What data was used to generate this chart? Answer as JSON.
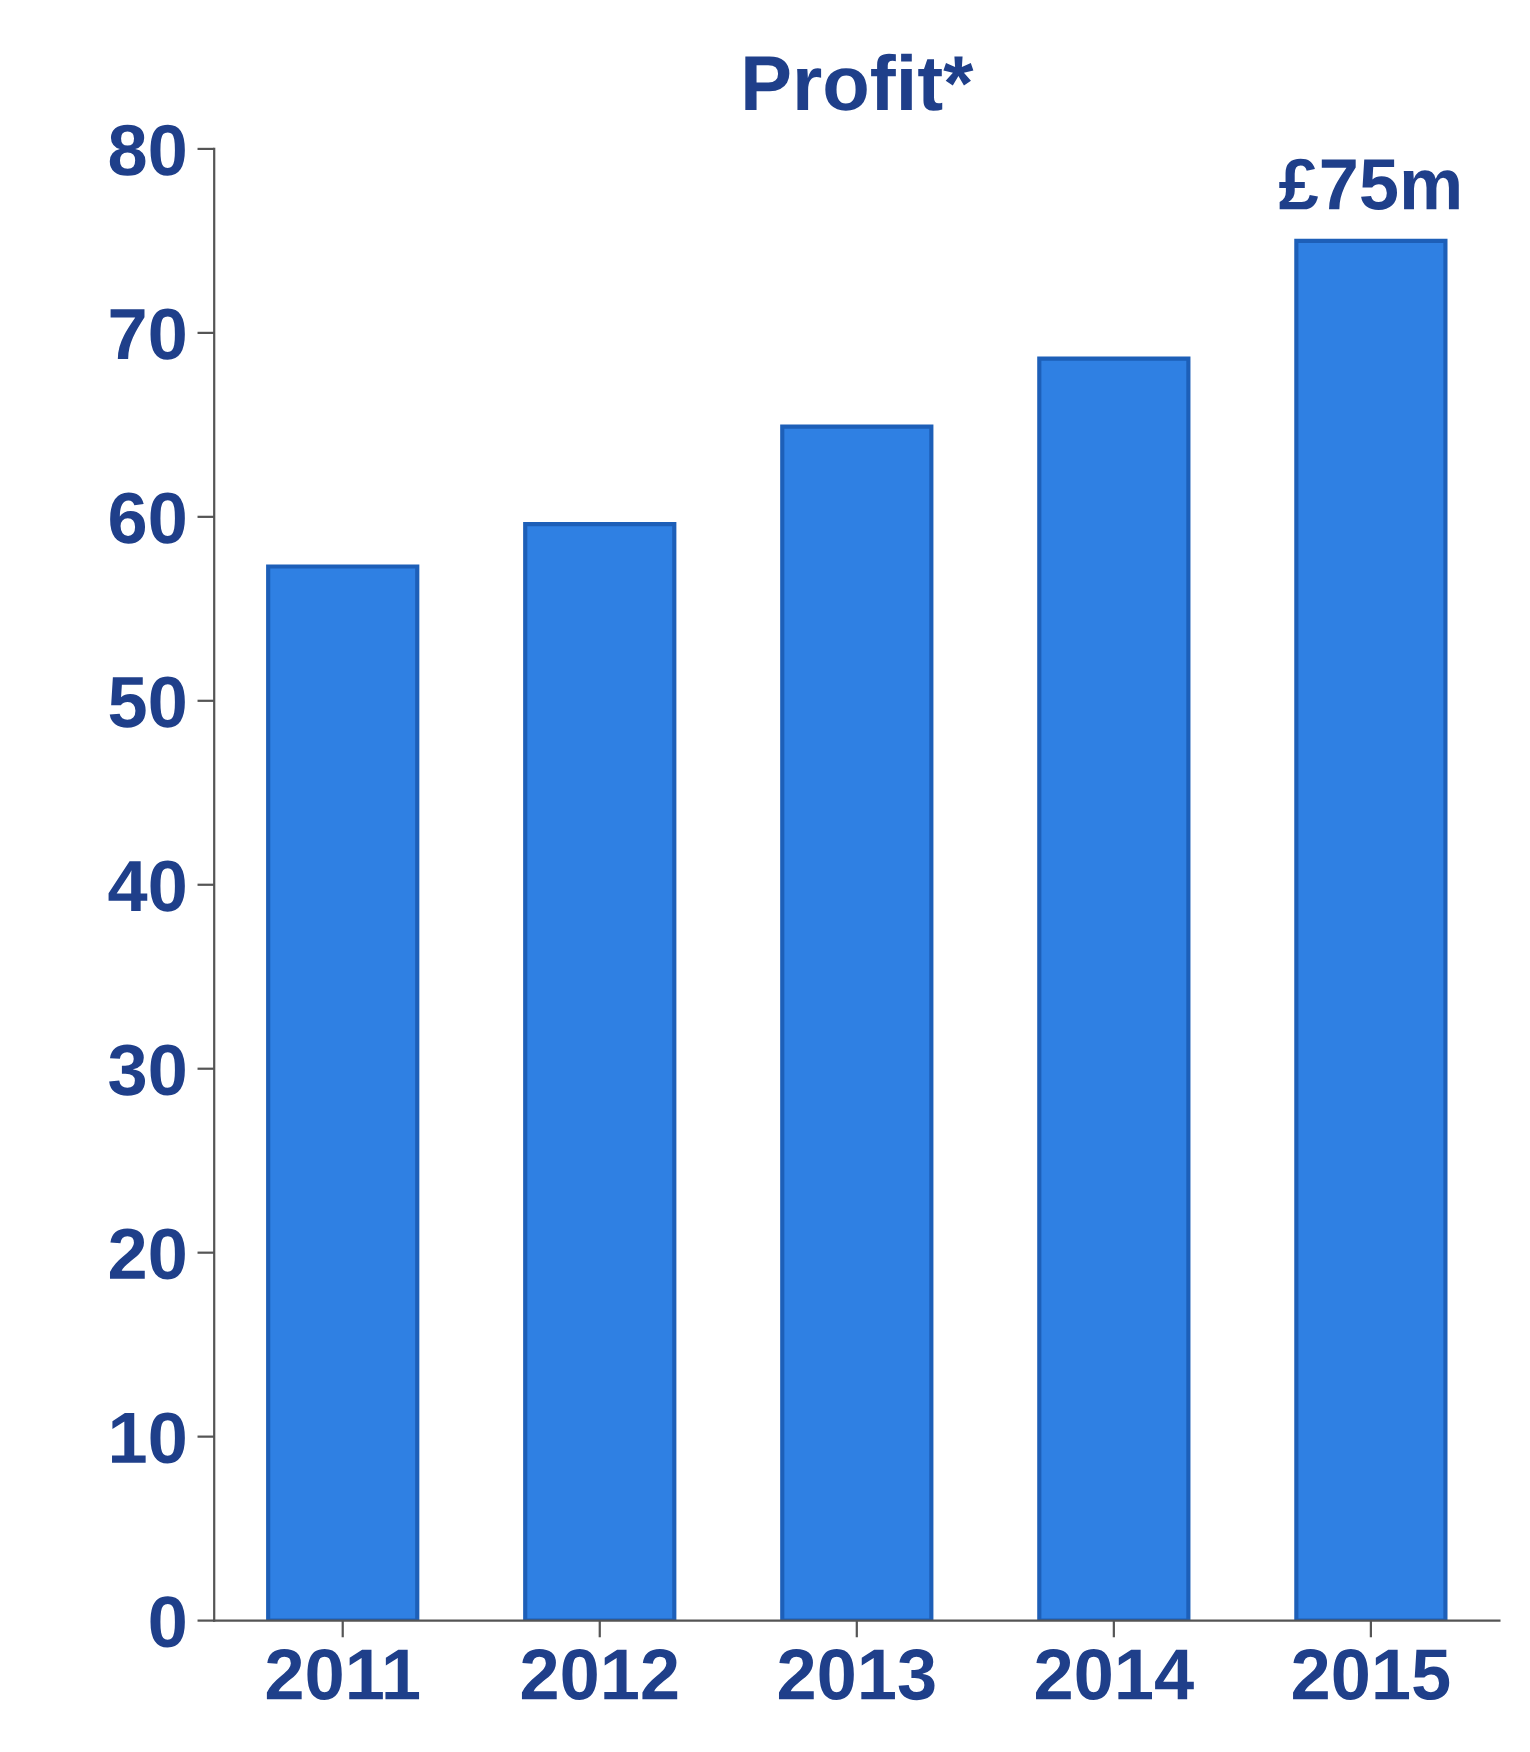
{
  "chart_data": {
    "type": "bar",
    "title": "Profit*",
    "categories": [
      "2011",
      "2012",
      "2013",
      "2014",
      "2015"
    ],
    "values": [
      57.3,
      59.6,
      64.9,
      68.6,
      75.0
    ],
    "value_labels": [
      null,
      null,
      null,
      null,
      "£75m"
    ],
    "color": "#2f80e3",
    "ylim": [
      0,
      80
    ],
    "yticks": [
      0,
      10,
      20,
      30,
      40,
      50,
      60,
      70,
      80
    ],
    "grid": false,
    "legend": false
  }
}
